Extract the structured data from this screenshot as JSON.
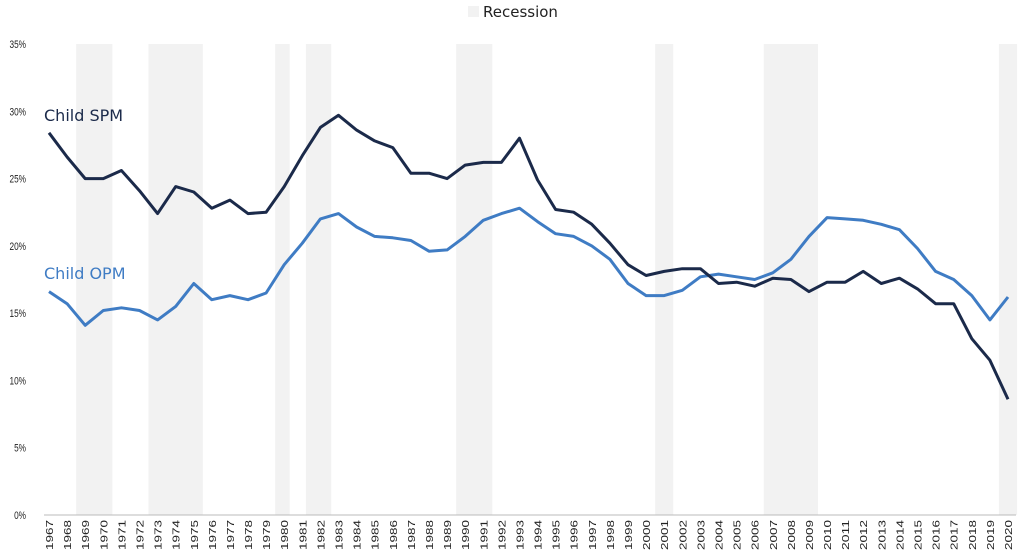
{
  "chart_data": {
    "type": "line",
    "title": "",
    "xlabel": "",
    "ylabel": "",
    "ylim": [
      0,
      35
    ],
    "yticks": [
      0,
      5,
      10,
      15,
      20,
      25,
      30,
      35
    ],
    "ytick_labels": [
      "0%",
      "5%",
      "10%",
      "15%",
      "20%",
      "25%",
      "30%",
      "35%"
    ],
    "x": [
      1967,
      1968,
      1969,
      1970,
      1971,
      1972,
      1973,
      1974,
      1975,
      1976,
      1977,
      1978,
      1979,
      1980,
      1981,
      1982,
      1983,
      1984,
      1985,
      1986,
      1987,
      1988,
      1989,
      1990,
      1991,
      1992,
      1993,
      1994,
      1995,
      1996,
      1997,
      1998,
      1999,
      2000,
      2001,
      2002,
      2003,
      2004,
      2005,
      2006,
      2007,
      2008,
      2009,
      2010,
      2011,
      2012,
      2013,
      2014,
      2015,
      2016,
      2017,
      2018,
      2019,
      2020
    ],
    "grid": false,
    "legend": {
      "position": "top-center",
      "entries": [
        "Recession"
      ]
    },
    "recession_shading": [
      [
        1968.5,
        1970.5
      ],
      [
        1972.5,
        1975.5
      ],
      [
        1979.5,
        1980.3
      ],
      [
        1981.2,
        1982.6
      ],
      [
        1989.5,
        1991.5
      ],
      [
        2000.5,
        2001.5
      ],
      [
        2006.5,
        2009.5
      ],
      [
        2019.5,
        2020.5
      ]
    ],
    "colors": {
      "spm": "#1b2a4a",
      "opm": "#3f7cc4",
      "recession": "#f2f2f2"
    },
    "series": [
      {
        "name": "Child SPM",
        "key": "spm",
        "values": [
          28.4,
          26.6,
          25.0,
          25.0,
          25.6,
          24.1,
          22.4,
          24.4,
          24.0,
          22.8,
          23.4,
          22.4,
          22.5,
          24.4,
          26.7,
          28.8,
          29.7,
          28.6,
          27.8,
          27.3,
          25.4,
          25.4,
          25.0,
          26.0,
          26.2,
          26.2,
          28.0,
          24.9,
          22.7,
          22.5,
          21.6,
          20.2,
          18.6,
          17.8,
          18.1,
          18.3,
          18.3,
          17.2,
          17.3,
          17.0,
          17.6,
          17.5,
          16.6,
          17.3,
          17.3,
          18.1,
          17.2,
          17.6,
          16.8,
          15.7,
          15.7,
          13.1,
          11.5,
          8.6
        ]
      },
      {
        "name": "Child OPM",
        "key": "opm",
        "values": [
          16.6,
          15.7,
          14.1,
          15.2,
          15.4,
          15.2,
          14.5,
          15.5,
          17.2,
          16.0,
          16.3,
          16.0,
          16.5,
          18.6,
          20.2,
          22.0,
          22.4,
          21.4,
          20.7,
          20.6,
          20.4,
          19.6,
          19.7,
          20.7,
          21.9,
          22.4,
          22.8,
          21.8,
          20.9,
          20.7,
          20.0,
          19.0,
          17.2,
          16.3,
          16.3,
          16.7,
          17.7,
          17.9,
          17.7,
          17.5,
          18.0,
          19.0,
          20.7,
          22.1,
          22.0,
          21.9,
          21.6,
          21.2,
          19.8,
          18.1,
          17.5,
          16.3,
          14.5,
          16.2
        ]
      }
    ]
  }
}
